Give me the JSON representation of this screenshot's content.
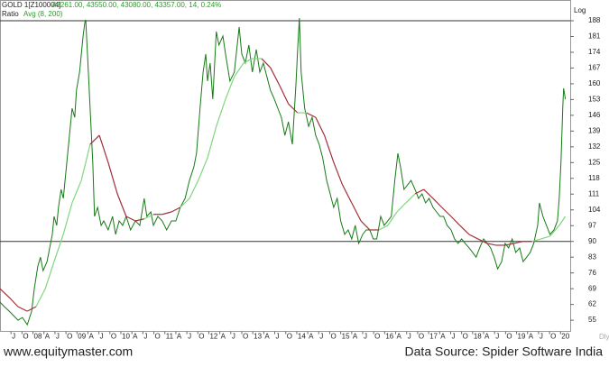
{
  "chart_data": {
    "type": "line",
    "title": "GOLD 1[Z100004]",
    "subtitle": "43261.00, 43550.00, 43080.00, 43357.00, 14, 0.24%",
    "indicator_label": "Ratio",
    "indicator_name": "Avg (8, 200)",
    "scale_label": "Log",
    "period_label": "Dly",
    "footer_left": "www.equitymaster.com",
    "footer_right": "Data Source: Spider Software India",
    "xlim": [
      2007.25,
      2020.22
    ],
    "ylim": [
      50,
      190
    ],
    "yticks": [
      55,
      62,
      69,
      76,
      83,
      90,
      97,
      104,
      111,
      118,
      125,
      132,
      139,
      146,
      153,
      160,
      167,
      174,
      181,
      188
    ],
    "xticks": [
      {
        "value": 2007.5,
        "label": "J"
      },
      {
        "value": 2007.75,
        "label": "O"
      },
      {
        "value": 2008,
        "label": "08"
      },
      {
        "value": 2008.25,
        "label": "A"
      },
      {
        "value": 2008.5,
        "label": "J"
      },
      {
        "value": 2008.75,
        "label": "O"
      },
      {
        "value": 2009,
        "label": "09"
      },
      {
        "value": 2009.25,
        "label": "A"
      },
      {
        "value": 2009.5,
        "label": "J"
      },
      {
        "value": 2009.75,
        "label": "O"
      },
      {
        "value": 2010,
        "label": "10"
      },
      {
        "value": 2010.25,
        "label": "A"
      },
      {
        "value": 2010.5,
        "label": "J"
      },
      {
        "value": 2010.75,
        "label": "O"
      },
      {
        "value": 2011,
        "label": "11"
      },
      {
        "value": 2011.25,
        "label": "A"
      },
      {
        "value": 2011.5,
        "label": "J"
      },
      {
        "value": 2011.75,
        "label": "O"
      },
      {
        "value": 2012,
        "label": "12"
      },
      {
        "value": 2012.25,
        "label": "A"
      },
      {
        "value": 2012.5,
        "label": "J"
      },
      {
        "value": 2012.75,
        "label": "O"
      },
      {
        "value": 2013,
        "label": "13"
      },
      {
        "value": 2013.25,
        "label": "A"
      },
      {
        "value": 2013.5,
        "label": "J"
      },
      {
        "value": 2013.75,
        "label": "O"
      },
      {
        "value": 2014,
        "label": "14"
      },
      {
        "value": 2014.25,
        "label": "A"
      },
      {
        "value": 2014.5,
        "label": "J"
      },
      {
        "value": 2014.75,
        "label": "O"
      },
      {
        "value": 2015,
        "label": "15"
      },
      {
        "value": 2015.25,
        "label": "A"
      },
      {
        "value": 2015.5,
        "label": "J"
      },
      {
        "value": 2015.75,
        "label": "O"
      },
      {
        "value": 2016,
        "label": "16"
      },
      {
        "value": 2016.25,
        "label": "A"
      },
      {
        "value": 2016.5,
        "label": "J"
      },
      {
        "value": 2016.75,
        "label": "O"
      },
      {
        "value": 2017,
        "label": "17"
      },
      {
        "value": 2017.25,
        "label": "A"
      },
      {
        "value": 2017.5,
        "label": "J"
      },
      {
        "value": 2017.75,
        "label": "O"
      },
      {
        "value": 2018,
        "label": "18"
      },
      {
        "value": 2018.25,
        "label": "A"
      },
      {
        "value": 2018.5,
        "label": "J"
      },
      {
        "value": 2018.75,
        "label": "O"
      },
      {
        "value": 2019,
        "label": "19"
      },
      {
        "value": 2019.25,
        "label": "A"
      },
      {
        "value": 2019.5,
        "label": "J"
      },
      {
        "value": 2019.75,
        "label": "O"
      },
      {
        "value": 2020,
        "label": "20"
      }
    ],
    "reference_lines": [
      188,
      90
    ],
    "reference_color": "#333333",
    "ma_up_color": "#7fd67f",
    "ma_down_color": "#a0303a",
    "series": [
      {
        "name": "GOLD 1[Z100004]",
        "color": "#167a16",
        "x": [
          2007.25,
          2007.35,
          2007.46,
          2007.56,
          2007.66,
          2007.76,
          2007.87,
          2007.97,
          2008.03,
          2008.11,
          2008.17,
          2008.23,
          2008.32,
          2008.38,
          2008.44,
          2008.48,
          2008.54,
          2008.58,
          2008.64,
          2008.69,
          2008.75,
          2008.79,
          2008.85,
          2008.89,
          2008.95,
          2008.99,
          2009.06,
          2009.1,
          2009.14,
          2009.18,
          2009.2,
          2009.24,
          2009.3,
          2009.36,
          2009.4,
          2009.47,
          2009.55,
          2009.61,
          2009.71,
          2009.81,
          2009.88,
          2009.96,
          2010.04,
          2010.12,
          2010.22,
          2010.33,
          2010.43,
          2010.53,
          2010.59,
          2010.68,
          2010.74,
          2010.84,
          2010.94,
          2011.04,
          2011.15,
          2011.25,
          2011.35,
          2011.46,
          2011.56,
          2011.66,
          2011.72,
          2011.8,
          2011.87,
          2011.93,
          2011.97,
          2012.03,
          2012.09,
          2012.17,
          2012.23,
          2012.32,
          2012.38,
          2012.48,
          2012.58,
          2012.69,
          2012.75,
          2012.83,
          2012.91,
          2012.99,
          2013.08,
          2013.16,
          2013.24,
          2013.32,
          2013.4,
          2013.49,
          2013.57,
          2013.65,
          2013.73,
          2013.81,
          2013.9,
          2013.98,
          2014.02,
          2014.06,
          2014.1,
          2014.18,
          2014.27,
          2014.35,
          2014.43,
          2014.51,
          2014.59,
          2014.68,
          2014.76,
          2014.84,
          2014.92,
          2015.0,
          2015.09,
          2015.17,
          2015.25,
          2015.33,
          2015.41,
          2015.5,
          2015.58,
          2015.66,
          2015.74,
          2015.82,
          2015.91,
          2015.99,
          2016.07,
          2016.15,
          2016.23,
          2016.3,
          2016.36,
          2016.44,
          2016.52,
          2016.6,
          2016.69,
          2016.77,
          2016.85,
          2016.93,
          2017.01,
          2017.1,
          2017.18,
          2017.26,
          2017.34,
          2017.42,
          2017.51,
          2017.59,
          2017.67,
          2017.75,
          2017.83,
          2017.92,
          2018.0,
          2018.08,
          2018.16,
          2018.25,
          2018.33,
          2018.41,
          2018.49,
          2018.57,
          2018.66,
          2018.74,
          2018.82,
          2018.9,
          2018.98,
          2019.07,
          2019.15,
          2019.23,
          2019.31,
          2019.39,
          2019.48,
          2019.52,
          2019.6,
          2019.68,
          2019.76,
          2019.85,
          2019.93,
          2019.97,
          2020.01,
          2020.05,
          2020.07,
          2020.11
        ],
        "values": [
          63,
          61,
          59,
          57,
          55,
          56.2,
          53,
          59,
          69,
          79,
          83,
          77,
          81,
          87.1,
          93.1,
          101.1,
          97.1,
          105.1,
          113.1,
          109.1,
          121.1,
          129.1,
          141.1,
          149.1,
          145.1,
          157.2,
          165.2,
          173.2,
          181.2,
          187.2,
          188.4,
          173.2,
          149.1,
          125.1,
          101.1,
          105.1,
          97.1,
          99.1,
          95.1,
          101.1,
          93.1,
          99.1,
          97.1,
          101.1,
          95.1,
          99.1,
          97.1,
          109.1,
          101.1,
          103.1,
          97.1,
          101.1,
          99.1,
          95.1,
          99.1,
          99.1,
          105.1,
          109.1,
          117.1,
          123.1,
          129.1,
          149.1,
          165.2,
          173.2,
          161.2,
          169.2,
          153.2,
          183.2,
          177.2,
          181.2,
          173.2,
          161.2,
          165.2,
          185.2,
          173.2,
          169.2,
          177.2,
          165.2,
          175.2,
          165.2,
          169.2,
          163.2,
          157.2,
          153.2,
          149.1,
          145.1,
          137.1,
          143.1,
          133.1,
          159.2,
          175.2,
          189.2,
          165.2,
          149.1,
          141.1,
          145.1,
          137.1,
          133.1,
          127.1,
          117.1,
          111.1,
          105.1,
          109.1,
          99.1,
          93.1,
          95.1,
          91.1,
          97.1,
          89.1,
          93.1,
          95.1,
          95.1,
          91.1,
          91.1,
          101.1,
          97.1,
          99.1,
          101.1,
          117.1,
          129.1,
          123.1,
          113.1,
          115.1,
          117.1,
          113.1,
          109.1,
          111.1,
          107.1,
          109.1,
          105.1,
          103.1,
          101.1,
          101.1,
          97.1,
          95.1,
          91.1,
          89.1,
          91.1,
          89.1,
          87.1,
          85.1,
          83,
          87.1,
          91.1,
          89.1,
          87.1,
          83,
          77.8,
          81,
          89.1,
          87.1,
          91.1,
          85.1,
          87.1,
          81,
          83,
          85.1,
          89.1,
          97.1,
          107.1,
          101.1,
          97.1,
          93.1,
          95.1,
          99.1,
          109.1,
          125.1,
          149.1,
          158,
          153.2
        ]
      },
      {
        "name": "Avg (8, 200)",
        "color": "#7fd67f",
        "x": [
          2007.25,
          2007.46,
          2007.66,
          2007.87,
          2008.07,
          2008.28,
          2008.48,
          2008.69,
          2008.89,
          2009.1,
          2009.3,
          2009.51,
          2009.71,
          2009.92,
          2010.12,
          2010.33,
          2010.53,
          2010.74,
          2010.94,
          2011.15,
          2011.35,
          2011.56,
          2011.76,
          2011.97,
          2012.17,
          2012.38,
          2012.58,
          2012.79,
          2012.99,
          2013.2,
          2013.4,
          2013.61,
          2013.81,
          2014.02,
          2014.22,
          2014.43,
          2014.63,
          2014.84,
          2015.04,
          2015.25,
          2015.46,
          2015.66,
          2015.87,
          2016.07,
          2016.28,
          2016.48,
          2016.69,
          2016.89,
          2017.1,
          2017.3,
          2017.51,
          2017.71,
          2017.92,
          2018.12,
          2018.33,
          2018.53,
          2018.74,
          2018.94,
          2019.15,
          2019.35,
          2019.56,
          2019.76,
          2019.97,
          2020.11
        ],
        "values": [
          69,
          65.1,
          61,
          59,
          61,
          69,
          81,
          93.1,
          107.1,
          117.1,
          133.1,
          137.1,
          125.1,
          111.1,
          101.1,
          99.1,
          100,
          102,
          102,
          103.1,
          105.1,
          109.1,
          117.1,
          127.1,
          141.1,
          153.2,
          163.2,
          169.2,
          171.2,
          171.2,
          167.2,
          159.2,
          151.1,
          147.1,
          147.1,
          145.1,
          137.1,
          125.1,
          115.1,
          107.1,
          99.1,
          95.1,
          95.1,
          97.1,
          103.1,
          107.1,
          111.1,
          113.1,
          109.1,
          105.1,
          101.1,
          97.1,
          93.1,
          91.1,
          89.1,
          88.3,
          88.3,
          89.1,
          90,
          90,
          91.1,
          92.3,
          97.1,
          101.1
        ]
      }
    ]
  }
}
